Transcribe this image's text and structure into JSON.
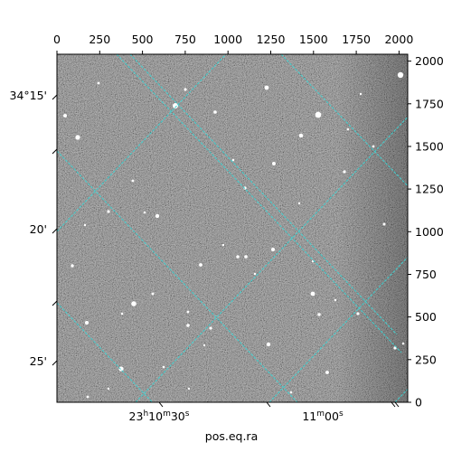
{
  "figure": {
    "xlabel": "pos.eq.ra",
    "top_axis": {
      "ticks": [
        "0",
        "250",
        "500",
        "750",
        "1000",
        "1250",
        "1500",
        "1750",
        "2000"
      ]
    },
    "right_axis": {
      "ticks": [
        "0",
        "250",
        "500",
        "750",
        "1000",
        "1250",
        "1500",
        "1750",
        "2000"
      ]
    },
    "left_axis": {
      "ticks": [
        "34°15'",
        "20'",
        "25'"
      ]
    },
    "bottom_axis": {
      "ticks": [
        {
          "main": "23",
          "h": "h",
          "m_val": "10",
          "m": "m",
          "s_val": "30",
          "s": "s"
        },
        {
          "main": "11",
          "m": "m",
          "s_val": "00",
          "s": "s"
        }
      ]
    },
    "grid_color": "#3fd0d0",
    "image_bg": "#7a7a7a"
  }
}
